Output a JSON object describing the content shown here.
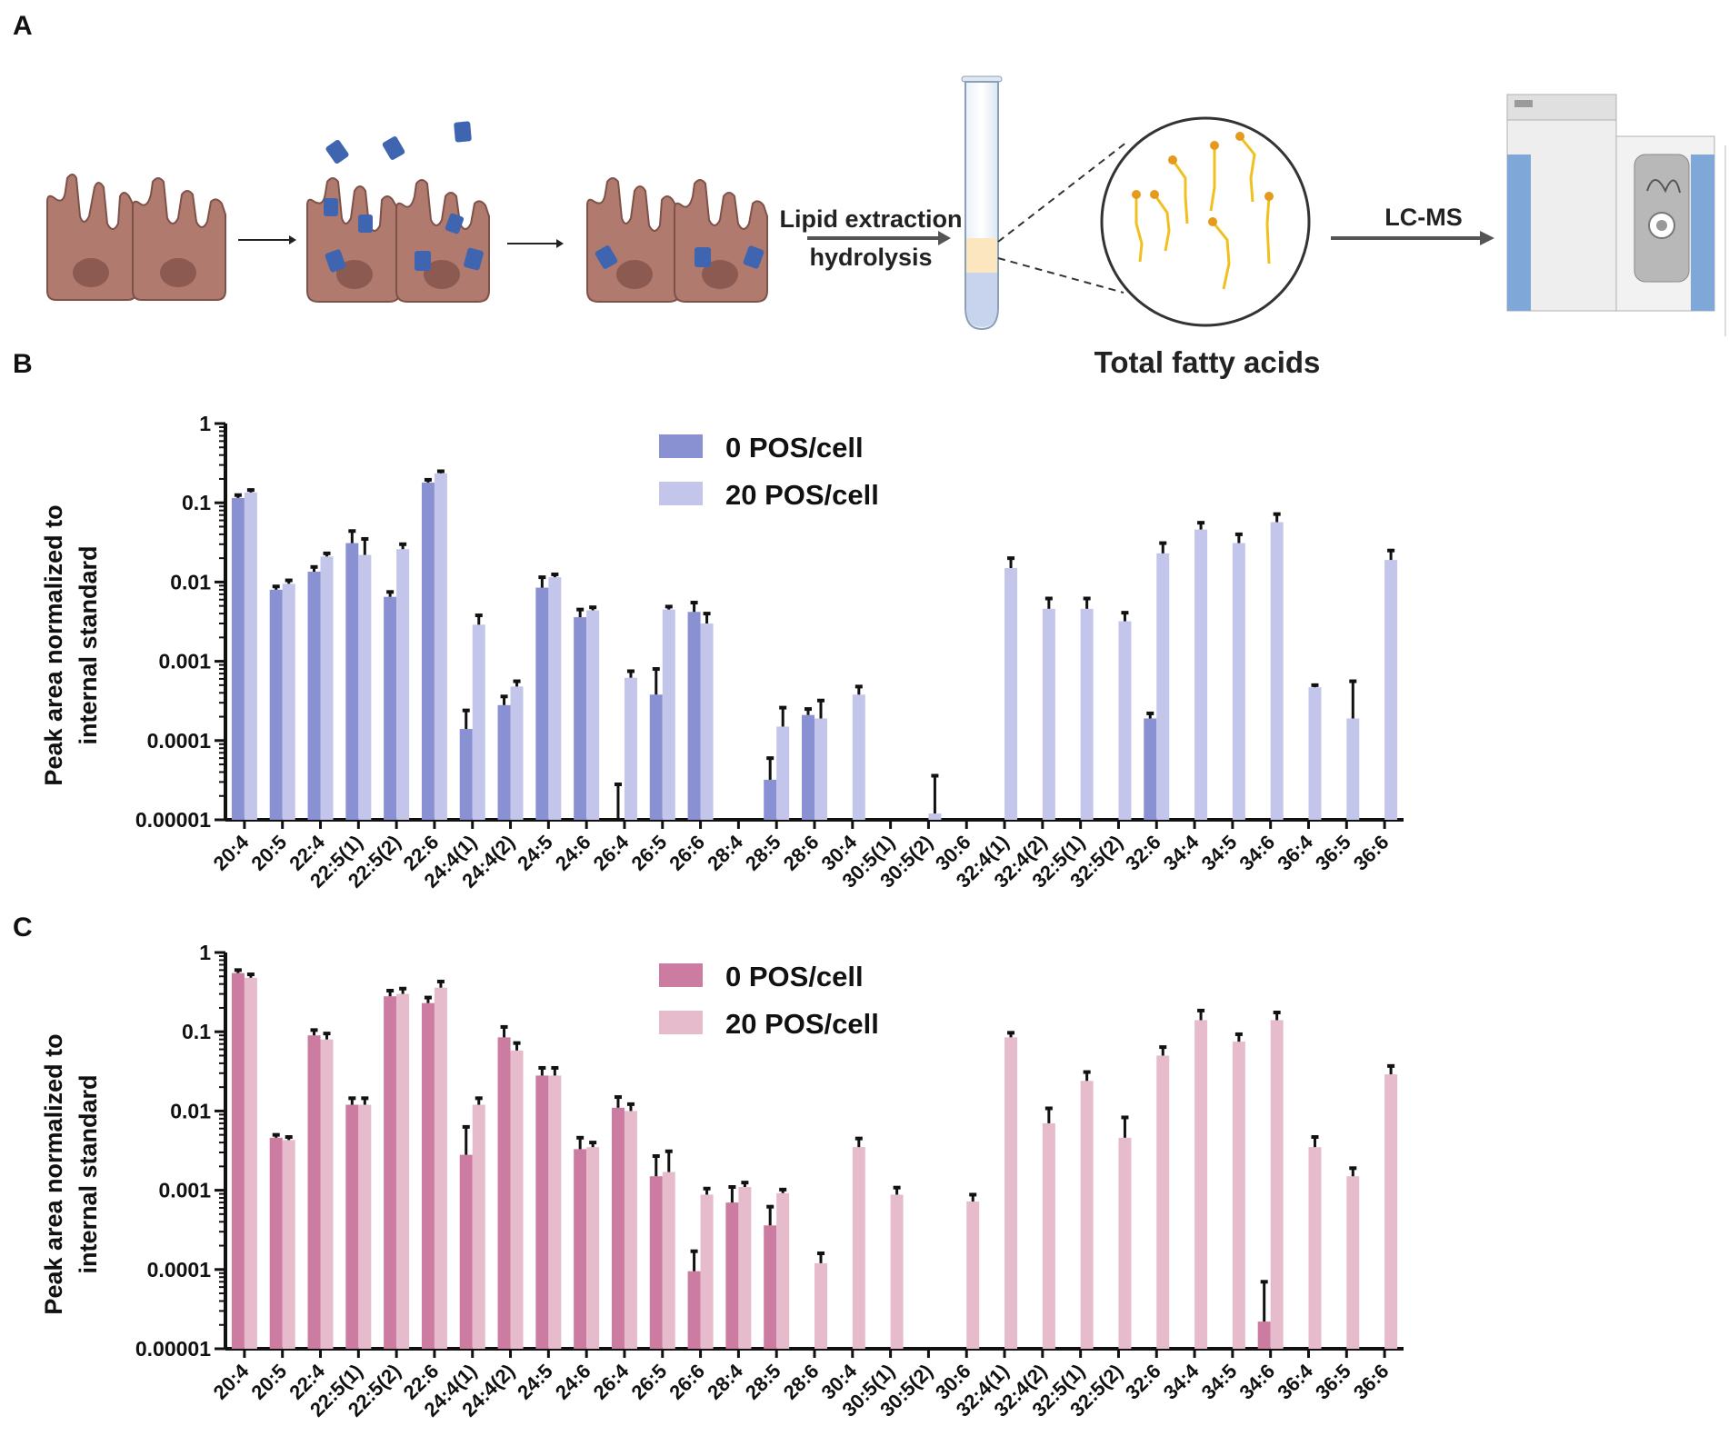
{
  "panels": {
    "a": "A",
    "b": "B",
    "c": "C"
  },
  "schematic": {
    "step1_label": "Lipid extraction",
    "step2_label": "hydrolysis",
    "zoom_label": "Total fatty acids",
    "instrument_label": "LC-MS"
  },
  "colors": {
    "b_series0": "#8a91d2",
    "b_series1": "#c3c6ea",
    "c_series0": "#cc7ca0",
    "c_series1": "#e6bccd",
    "error_bar": "#111111",
    "cell": "#b07a6e",
    "particle": "#3f64b0",
    "fatty_acid": "#f0c020"
  },
  "chart_data": [
    {
      "id": "B",
      "type": "bar",
      "scale": "log",
      "ylabel": [
        "Peak area normalized to",
        "internal standard"
      ],
      "ylim": [
        1e-05,
        1
      ],
      "ytick_values": [
        1,
        0.1,
        0.01,
        0.001,
        0.0001,
        1e-05
      ],
      "ytick_labels": [
        "1",
        "0.1",
        "0.01",
        "0.001",
        "0.0001",
        "0.00001"
      ],
      "categories": [
        "20:4",
        "20:5",
        "22:4",
        "22:5(1)",
        "22:5(2)",
        "22:6",
        "24:4(1)",
        "24:4(2)",
        "24:5",
        "24:6",
        "26:4",
        "26:5",
        "26:6",
        "28:4",
        "28:5",
        "28:6",
        "30:4",
        "30:5(1)",
        "30:5(2)",
        "30:6",
        "32:4(1)",
        "32:4(2)",
        "32:5(1)",
        "32:5(2)",
        "32:6",
        "34:4",
        "34:5",
        "34:6",
        "36:4",
        "36:5",
        "36:6"
      ],
      "series": [
        {
          "name": "0 POS/cell",
          "values": [
            0.115,
            0.008,
            0.0135,
            0.031,
            0.0065,
            0.18,
            0.00014,
            0.00028,
            0.0085,
            0.0036,
            1e-05,
            0.00038,
            0.0042,
            null,
            3.2e-05,
            0.00021,
            null,
            null,
            null,
            null,
            null,
            null,
            null,
            null,
            0.00019,
            null,
            null,
            null,
            null,
            null,
            null
          ],
          "errors": [
            0.125,
            0.0088,
            0.0155,
            0.044,
            0.0075,
            0.195,
            0.00024,
            0.00036,
            0.0115,
            0.0045,
            2.8e-05,
            0.0008,
            0.0055,
            null,
            6e-05,
            0.00025,
            null,
            null,
            null,
            null,
            null,
            null,
            null,
            null,
            0.00022,
            null,
            null,
            null,
            null,
            null,
            null
          ]
        },
        {
          "name": "20 POS/cell",
          "values": [
            0.135,
            0.0095,
            0.021,
            0.022,
            0.026,
            0.235,
            0.0029,
            0.00048,
            0.0115,
            0.0044,
            0.00062,
            0.0045,
            0.003,
            null,
            0.00015,
            0.00019,
            0.00038,
            null,
            1.2e-05,
            null,
            0.015,
            0.0046,
            0.0046,
            0.0032,
            0.023,
            0.046,
            0.031,
            0.057,
            0.00047,
            0.00019,
            0.019
          ],
          "errors": [
            0.145,
            0.0105,
            0.023,
            0.035,
            0.03,
            0.25,
            0.0038,
            0.00056,
            0.0125,
            0.0048,
            0.00075,
            0.0049,
            0.004,
            null,
            0.00026,
            0.00032,
            0.00048,
            null,
            3.6e-05,
            null,
            0.02,
            0.0062,
            0.0062,
            0.0041,
            0.031,
            0.056,
            0.04,
            0.072,
            0.0005,
            0.00056,
            0.025
          ]
        }
      ]
    },
    {
      "id": "C",
      "type": "bar",
      "scale": "log",
      "ylabel": [
        "Peak area normalized to",
        "internal standard"
      ],
      "ylim": [
        1e-05,
        1
      ],
      "ytick_values": [
        1,
        0.1,
        0.01,
        0.001,
        0.0001,
        1e-05
      ],
      "ytick_labels": [
        "1",
        "0.1",
        "0.01",
        "0.001",
        "0.0001",
        "0.00001"
      ],
      "categories": [
        "20:4",
        "20:5",
        "22:4",
        "22:5(1)",
        "22:5(2)",
        "22:6",
        "24:4(1)",
        "24:4(2)",
        "24:5",
        "24:6",
        "26:4",
        "26:5",
        "26:6",
        "28:4",
        "28:5",
        "28:6",
        "30:4",
        "30:5(1)",
        "30:5(2)",
        "30:6",
        "32:4(1)",
        "32:4(2)",
        "32:5(1)",
        "32:5(2)",
        "32:6",
        "34:4",
        "34:5",
        "34:6",
        "36:4",
        "36:5",
        "36:6"
      ],
      "series": [
        {
          "name": "0 POS/cell",
          "values": [
            0.55,
            0.0046,
            0.09,
            0.012,
            0.28,
            0.23,
            0.0028,
            0.085,
            0.028,
            0.0033,
            0.011,
            0.0015,
            9.5e-05,
            0.0007,
            0.00036,
            null,
            null,
            null,
            null,
            null,
            null,
            null,
            null,
            null,
            null,
            null,
            null,
            2.2e-05,
            null,
            null,
            null
          ],
          "errors": [
            0.6,
            0.005,
            0.105,
            0.0145,
            0.33,
            0.27,
            0.0063,
            0.115,
            0.035,
            0.0046,
            0.015,
            0.0027,
            0.00017,
            0.0011,
            0.00062,
            null,
            null,
            null,
            null,
            null,
            null,
            null,
            null,
            null,
            null,
            null,
            null,
            7e-05,
            null,
            null,
            null
          ]
        },
        {
          "name": "20 POS/cell",
          "values": [
            0.48,
            0.0043,
            0.08,
            0.012,
            0.3,
            0.36,
            0.012,
            0.058,
            0.028,
            0.0035,
            0.01,
            0.0017,
            0.00088,
            0.0011,
            0.00092,
            0.00012,
            0.0035,
            0.00088,
            null,
            0.00072,
            0.085,
            0.007,
            0.024,
            0.0046,
            0.05,
            0.14,
            0.075,
            0.14,
            0.0035,
            0.0015,
            0.029
          ],
          "errors": [
            0.53,
            0.0047,
            0.095,
            0.0145,
            0.35,
            0.43,
            0.0145,
            0.072,
            0.035,
            0.004,
            0.0122,
            0.0031,
            0.00105,
            0.00125,
            0.00102,
            0.00016,
            0.0045,
            0.00108,
            null,
            0.00088,
            0.097,
            0.0108,
            0.031,
            0.0083,
            0.064,
            0.185,
            0.093,
            0.175,
            0.0047,
            0.0019,
            0.037
          ]
        }
      ]
    }
  ]
}
